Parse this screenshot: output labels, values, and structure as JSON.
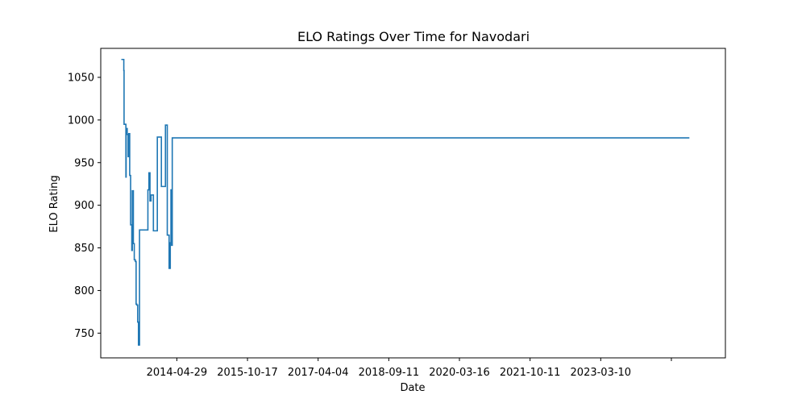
{
  "chart_data": {
    "type": "line",
    "title": "ELO Ratings Over Time for Navodari",
    "xlabel": "Date",
    "ylabel": "ELO Rating",
    "xlim": [
      "2012-09-25",
      "2025-10-17"
    ],
    "ylim": [
      721,
      1084
    ],
    "x_ticks": [
      "2014-04-29",
      "2015-10-17",
      "2017-04-04",
      "2018-09-11",
      "2020-03-16",
      "2021-10-11",
      "2023-03-10",
      ""
    ],
    "y_ticks": [
      "750",
      "800",
      "850",
      "900",
      "950",
      "1000",
      "1050"
    ],
    "grid": false,
    "series_color": "#1f77b4",
    "series": [
      {
        "x": [
          "2013-03-01",
          "2013-03-20",
          "2013-03-22",
          "2013-04-05",
          "2013-04-07",
          "2013-04-13",
          "2013-04-15",
          "2013-04-22",
          "2013-04-27",
          "2013-05-04",
          "2013-05-11",
          "2013-05-20",
          "2013-05-24",
          "2013-06-01",
          "2013-06-08",
          "2013-06-16",
          "2013-06-22",
          "2013-06-27",
          "2013-07-04",
          "2013-07-10",
          "2013-07-18",
          "2013-07-26",
          "2013-08-02",
          "2013-08-10",
          "2013-08-17",
          "2013-08-25",
          "2013-09-04",
          "2013-09-12",
          "2013-09-20",
          "2013-09-28",
          "2013-10-06",
          "2013-10-14",
          "2013-11-01",
          "2013-12-01",
          "2014-01-01",
          "2014-02-01",
          "2014-02-15",
          "2014-03-01",
          "2014-03-10",
          "2014-03-15",
          "2014-03-20",
          "2014-03-25",
          "2014-03-30",
          "2014-04-03",
          "2014-04-06",
          "2014-04-09",
          "2014-04-12",
          "2014-04-15",
          "2014-04-18",
          "2014-04-21",
          "2014-04-23",
          "2014-04-25",
          "2014-04-27",
          "2014-04-29",
          "2014-05-02",
          "2014-05-06",
          "2014-05-10",
          "2025-01-15"
        ],
        "y": [
          1071,
          1058,
          995,
          933,
          990,
          990,
          983,
          957,
          984,
          935,
          877,
          847,
          917,
          855,
          836,
          834,
          784,
          783,
          763,
          736,
          871,
          871,
          871,
          871,
          871,
          871,
          871,
          871,
          918,
          938,
          905,
          912,
          870,
          980,
          922,
          994,
          865,
          826,
          856,
          918,
          853,
          979,
          979,
          979,
          979,
          979,
          979,
          979,
          979,
          979,
          979,
          979,
          979,
          979,
          979,
          979,
          979,
          979
        ]
      }
    ]
  }
}
